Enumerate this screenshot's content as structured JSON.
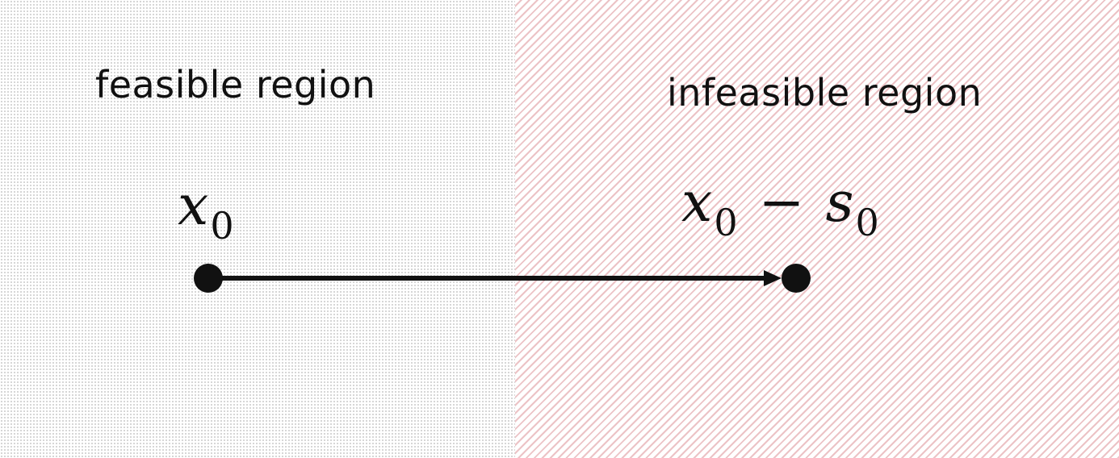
{
  "regions": {
    "feasible": {
      "label": "feasible region"
    },
    "infeasible": {
      "label": "infeasible region",
      "stripe_color": "#ecc3c6"
    }
  },
  "points": {
    "start": {
      "symbol": "x",
      "subscript": "0"
    },
    "end": {
      "symbol": "x",
      "subscript": "0",
      "operator": "−",
      "symbol2": "s",
      "subscript2": "0"
    }
  },
  "colors": {
    "ink": "#111111",
    "stipple": "#c8c8c8"
  }
}
